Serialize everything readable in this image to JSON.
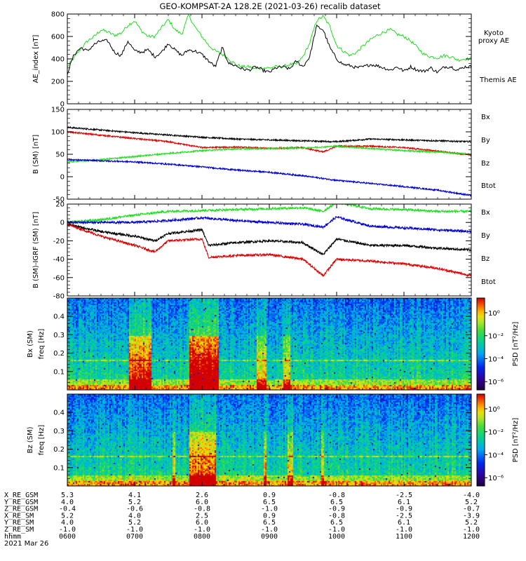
{
  "figure": {
    "title": "GEO-KOMPSAT-2A 128.2E (2021-03-26) recalib dataset",
    "date_label": "2021 Mar 26"
  },
  "colors": {
    "black": "#000000",
    "green": "#22dd22",
    "blue": "#0000cc",
    "red": "#dd0000"
  },
  "chart_data": [
    {
      "id": "ae",
      "type": "line",
      "ylabel": "AE_index [nT]",
      "ylim": [
        0,
        800
      ],
      "yticks": [
        0,
        200,
        400,
        600,
        800
      ],
      "xlim": [
        6.0,
        12.0
      ],
      "legend": [
        {
          "text": "Kyoto proxy AE",
          "color": "#22dd22"
        },
        {
          "text": "Themis AE",
          "color": "#000000"
        }
      ],
      "series": [
        {
          "name": "Kyoto proxy AE",
          "color": "#22dd22",
          "x": [
            6.0,
            6.1,
            6.2,
            6.3,
            6.4,
            6.5,
            6.6,
            6.7,
            6.8,
            6.9,
            7.0,
            7.1,
            7.2,
            7.3,
            7.4,
            7.5,
            7.6,
            7.7,
            7.8,
            7.9,
            8.0,
            8.1,
            8.2,
            8.3,
            8.4,
            8.5,
            8.6,
            8.7,
            8.8,
            8.9,
            9.0,
            9.1,
            9.2,
            9.3,
            9.4,
            9.5,
            9.6,
            9.7,
            9.8,
            9.9,
            10.0,
            10.1,
            10.2,
            10.3,
            10.4,
            10.5,
            10.6,
            10.7,
            10.8,
            10.9,
            11.0,
            11.1,
            11.2,
            11.3,
            11.4,
            11.5,
            11.6,
            11.7,
            11.8,
            11.9,
            12.0
          ],
          "values": [
            330,
            410,
            490,
            560,
            600,
            660,
            640,
            610,
            630,
            700,
            740,
            650,
            600,
            600,
            680,
            750,
            660,
            620,
            790,
            680,
            600,
            520,
            470,
            440,
            400,
            350,
            330,
            330,
            310,
            320,
            320,
            330,
            330,
            350,
            350,
            420,
            540,
            740,
            780,
            690,
            520,
            470,
            430,
            460,
            520,
            570,
            610,
            640,
            660,
            620,
            600,
            560,
            500,
            440,
            420,
            410,
            430,
            420,
            390,
            400,
            400
          ]
        },
        {
          "name": "Themis AE",
          "color": "#000000",
          "x": [
            6.0,
            6.1,
            6.2,
            6.3,
            6.4,
            6.5,
            6.6,
            6.7,
            6.8,
            6.9,
            7.0,
            7.1,
            7.2,
            7.3,
            7.4,
            7.5,
            7.6,
            7.7,
            7.8,
            7.9,
            8.0,
            8.1,
            8.2,
            8.3,
            8.4,
            8.5,
            8.6,
            8.7,
            8.8,
            8.9,
            9.0,
            9.1,
            9.2,
            9.3,
            9.4,
            9.5,
            9.6,
            9.7,
            9.8,
            9.9,
            10.0,
            10.1,
            10.2,
            10.3,
            10.4,
            10.5,
            10.6,
            10.7,
            10.8,
            10.9,
            11.0,
            11.1,
            11.2,
            11.3,
            11.4,
            11.5,
            11.6,
            11.7,
            11.8,
            11.9,
            12.0
          ],
          "values": [
            270,
            440,
            500,
            470,
            530,
            560,
            560,
            460,
            430,
            560,
            470,
            460,
            480,
            420,
            460,
            540,
            480,
            430,
            480,
            470,
            440,
            380,
            330,
            500,
            360,
            340,
            310,
            300,
            330,
            300,
            280,
            320,
            330,
            310,
            380,
            330,
            420,
            690,
            660,
            500,
            400,
            350,
            340,
            320,
            330,
            350,
            340,
            320,
            300,
            330,
            290,
            330,
            300,
            290,
            320,
            280,
            330,
            330,
            300,
            330,
            330
          ]
        }
      ]
    },
    {
      "id": "bsm",
      "type": "line",
      "ylabel": "B (SM) [nT]",
      "ylim": [
        -50,
        150
      ],
      "yticks": [
        -50,
        0,
        50,
        100,
        150
      ],
      "xlim": [
        6.0,
        12.0
      ],
      "legend": [
        {
          "text": "Bx",
          "color": "#0000cc"
        },
        {
          "text": "By",
          "color": "#22dd22"
        },
        {
          "text": "Bz",
          "color": "#dd0000"
        },
        {
          "text": "Btot",
          "color": "#000000"
        }
      ],
      "series": [
        {
          "name": "Btot",
          "color": "#000000",
          "x": [
            6.0,
            7.0,
            8.0,
            8.5,
            9.0,
            9.5,
            10.0,
            10.5,
            11.0,
            11.5,
            12.0
          ],
          "values": [
            110,
            98,
            88,
            84,
            82,
            80,
            78,
            84,
            82,
            80,
            78
          ]
        },
        {
          "name": "Bz",
          "color": "#dd0000",
          "x": [
            6.0,
            7.0,
            7.5,
            8.0,
            8.5,
            9.0,
            9.5,
            9.8,
            10.0,
            10.5,
            11.0,
            11.5,
            12.0
          ],
          "values": [
            100,
            85,
            78,
            65,
            66,
            63,
            65,
            55,
            68,
            68,
            65,
            57,
            48
          ]
        },
        {
          "name": "By",
          "color": "#22dd22",
          "x": [
            6.0,
            6.5,
            7.0,
            7.5,
            8.0,
            8.5,
            9.0,
            9.5,
            10.0,
            10.5,
            11.0,
            11.5,
            12.0
          ],
          "values": [
            33,
            38,
            45,
            52,
            58,
            62,
            63,
            64,
            68,
            63,
            58,
            55,
            50
          ]
        },
        {
          "name": "Bx",
          "color": "#0000cc",
          "x": [
            6.0,
            7.0,
            7.5,
            8.0,
            8.5,
            9.0,
            9.5,
            10.0,
            10.5,
            11.0,
            11.5,
            12.0
          ],
          "values": [
            38,
            33,
            28,
            22,
            15,
            10,
            2,
            -8,
            -15,
            -22,
            -30,
            -42
          ]
        }
      ]
    },
    {
      "id": "bdiff",
      "type": "line",
      "ylabel": "B (SM)-IGRF (SM) [nT]",
      "ylim": [
        -80,
        20
      ],
      "yticks": [
        -80,
        -60,
        -40,
        -20,
        0,
        20
      ],
      "xlim": [
        6.0,
        12.0
      ],
      "legend": [
        {
          "text": "Bx",
          "color": "#0000cc"
        },
        {
          "text": "By",
          "color": "#22dd22"
        },
        {
          "text": "Bz",
          "color": "#dd0000"
        },
        {
          "text": "Btot",
          "color": "#000000"
        }
      ],
      "series": [
        {
          "name": "By",
          "color": "#22dd22",
          "x": [
            6.0,
            6.5,
            7.0,
            7.5,
            8.0,
            8.5,
            9.0,
            9.5,
            9.8,
            10.0,
            10.5,
            11.0,
            11.5,
            12.0
          ],
          "values": [
            0,
            3,
            8,
            12,
            13,
            14,
            15,
            16,
            12,
            22,
            15,
            14,
            12,
            12
          ]
        },
        {
          "name": "Bx",
          "color": "#0000cc",
          "x": [
            6.0,
            6.5,
            7.0,
            7.5,
            8.0,
            8.5,
            9.0,
            9.5,
            9.8,
            10.0,
            10.5,
            11.0,
            11.5,
            12.0
          ],
          "values": [
            0,
            0,
            0,
            2,
            5,
            2,
            0,
            -2,
            -5,
            6,
            -4,
            -6,
            -8,
            -10
          ]
        },
        {
          "name": "Btot",
          "color": "#000000",
          "x": [
            6.0,
            6.5,
            7.0,
            7.3,
            7.5,
            8.0,
            8.1,
            8.5,
            9.0,
            9.5,
            9.8,
            10.0,
            10.5,
            11.0,
            11.5,
            12.0
          ],
          "values": [
            -2,
            -10,
            -15,
            -20,
            -12,
            -8,
            -25,
            -22,
            -20,
            -22,
            -35,
            -18,
            -25,
            -25,
            -28,
            -30
          ]
        },
        {
          "name": "Bz",
          "color": "#dd0000",
          "x": [
            6.0,
            6.5,
            7.0,
            7.3,
            7.5,
            8.0,
            8.1,
            8.5,
            9.0,
            9.5,
            9.8,
            10.0,
            10.5,
            11.0,
            11.5,
            12.0
          ],
          "values": [
            -2,
            -15,
            -25,
            -32,
            -20,
            -18,
            -38,
            -36,
            -35,
            -40,
            -58,
            -40,
            -42,
            -45,
            -50,
            -58
          ]
        }
      ]
    },
    {
      "id": "bx-spec",
      "type": "heatmap",
      "ylabel_top": "Bx (SM)",
      "ylabel": "freq [Hz]",
      "ylim": [
        0,
        0.5
      ],
      "yticks": [
        0.1,
        0.2,
        0.3,
        0.4
      ],
      "xlim": [
        6.0,
        12.0
      ],
      "colorbar": {
        "label": "PSD [nT²/Hz]",
        "ticks": [
          "10⁰",
          "10⁻²",
          "10⁻⁴",
          "10⁻⁶"
        ]
      }
    },
    {
      "id": "bz-spec",
      "type": "heatmap",
      "ylabel_top": "Bz (SM)",
      "ylabel": "freq [Hz]",
      "ylim": [
        0,
        0.5
      ],
      "yticks": [
        0.1,
        0.2,
        0.3,
        0.4
      ],
      "xlim": [
        6.0,
        12.0
      ],
      "colorbar": {
        "label": "PSD [nT²/Hz]",
        "ticks": [
          "10⁰",
          "10⁻²",
          "10⁻⁴",
          "10⁻⁶"
        ]
      }
    }
  ],
  "ephemeris": {
    "rows": [
      {
        "label": "X_RE_GSM",
        "values": [
          "5.3",
          "4.1",
          "2.6",
          "0.9",
          "-0.8",
          "-2.5",
          "-4.0"
        ]
      },
      {
        "label": "Y_RE_GSM",
        "values": [
          "4.0",
          "5.2",
          "6.0",
          "6.5",
          "6.5",
          "6.1",
          "5.2"
        ]
      },
      {
        "label": "Z_RE_GSM",
        "values": [
          "-0.4",
          "-0.6",
          "-0.8",
          "-1.0",
          "-0.9",
          "-0.9",
          "-0.7"
        ]
      },
      {
        "label": "X_RE_SM",
        "values": [
          "5.2",
          "4.0",
          "2.5",
          "0.9",
          "-0.8",
          "-2.5",
          "-3.9"
        ]
      },
      {
        "label": "Y_RE_SM",
        "values": [
          "4.0",
          "5.2",
          "6.0",
          "6.5",
          "6.5",
          "6.1",
          "5.2"
        ]
      },
      {
        "label": "Z_RE_SM",
        "values": [
          "-1.0",
          "-1.0",
          "-1.0",
          "-1.0",
          "-1.0",
          "-1.0",
          "-1.0"
        ]
      },
      {
        "label": "hhmm",
        "values": [
          "0600",
          "0700",
          "0800",
          "0900",
          "1000",
          "1100",
          "1200"
        ]
      }
    ]
  }
}
